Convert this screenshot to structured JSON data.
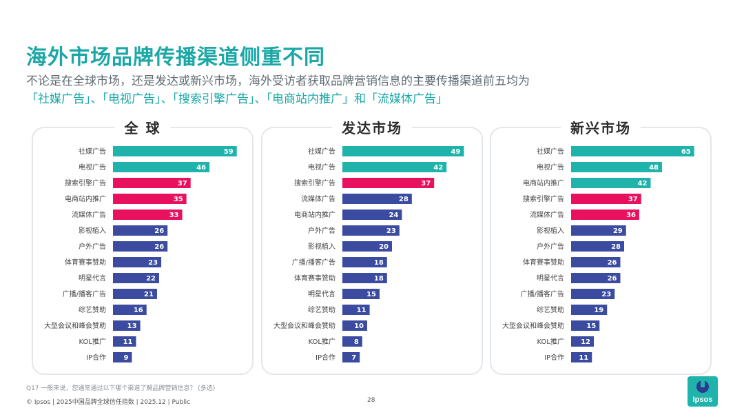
{
  "header": {
    "title": "海外市场品牌传播渠道侧重不同",
    "subtitle_line1": "不论是在全球市场，还是发达或新兴市场，海外受访者获取品牌营销信息的主要传播渠道前五均为",
    "subtitle_line2": "「社媒广告」、「电视广告」、「搜索引擎广告」、「电商站内推广」和「流媒体广告」"
  },
  "colors": {
    "teal": "#1fb3ac",
    "pink": "#e8115f",
    "blue": "#3a4ba0"
  },
  "chart_data": [
    {
      "type": "bar",
      "orientation": "horizontal",
      "title": "全 球",
      "categories": [
        "社媒广告",
        "电视广告",
        "搜索引擎广告",
        "电商站内推广",
        "流媒体广告",
        "影视植入",
        "户外广告",
        "体育赛事赞助",
        "明星代言",
        "广播/播客广告",
        "综艺赞助",
        "大型会议和峰会赞助",
        "KOL推广",
        "IP合作"
      ],
      "values": [
        59,
        46,
        37,
        35,
        33,
        26,
        26,
        23,
        22,
        21,
        16,
        13,
        11,
        9
      ],
      "bar_colors": [
        "teal",
        "teal",
        "pink",
        "pink",
        "pink",
        "blue",
        "blue",
        "blue",
        "blue",
        "blue",
        "blue",
        "blue",
        "blue",
        "blue"
      ],
      "xlim": [
        0,
        65
      ]
    },
    {
      "type": "bar",
      "orientation": "horizontal",
      "title": "发达市场",
      "categories": [
        "社媒广告",
        "电视广告",
        "搜索引擎广告",
        "流媒体广告",
        "电商站内推广",
        "户外广告",
        "影视植入",
        "广播/播客广告",
        "体育赛事赞助",
        "明星代言",
        "综艺赞助",
        "大型会议和峰会赞助",
        "KOL推广",
        "IP合作"
      ],
      "values": [
        49,
        42,
        37,
        28,
        24,
        23,
        20,
        18,
        18,
        15,
        11,
        10,
        8,
        7
      ],
      "bar_colors": [
        "teal",
        "teal",
        "pink",
        "blue",
        "blue",
        "blue",
        "blue",
        "blue",
        "blue",
        "blue",
        "blue",
        "blue",
        "blue",
        "blue"
      ],
      "xlim": [
        0,
        55
      ]
    },
    {
      "type": "bar",
      "orientation": "horizontal",
      "title": "新兴市场",
      "categories": [
        "社媒广告",
        "电视广告",
        "电商站内推广",
        "搜索引擎广告",
        "流媒体广告",
        "影视植入",
        "户外广告",
        "体育赛事赞助",
        "明星代言",
        "广播/播客广告",
        "综艺赞助",
        "大型会议和峰会赞助",
        "KOL推广",
        "IP合作"
      ],
      "values": [
        65,
        48,
        42,
        37,
        36,
        29,
        28,
        26,
        26,
        23,
        19,
        15,
        12,
        11
      ],
      "bar_colors": [
        "teal",
        "teal",
        "teal",
        "pink",
        "pink",
        "blue",
        "blue",
        "blue",
        "blue",
        "blue",
        "blue",
        "blue",
        "blue",
        "blue"
      ],
      "xlim": [
        0,
        72
      ]
    }
  ],
  "footer": {
    "question": "Q17 一般来说，您通常通过以下哪个渠道了解品牌营销信息？  (多选)",
    "copyright": "© Ipsos | 2025中国品牌全球信任指数 | 2025.12 | Public",
    "page_number": "28",
    "logo_text": "Ipsos"
  }
}
